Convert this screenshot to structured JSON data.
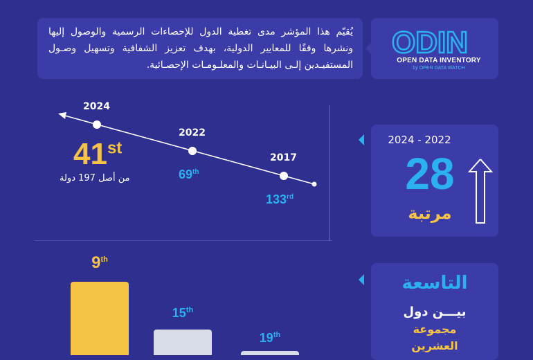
{
  "description": "يُقيّم هذا المؤشر مدى تغطية الدول للإحصاءات الرسمية والوصول إليها ونشرها وفقًا للمعايير الدولية، بهدف تعزيز الشفافية وتسهيل وصـول المستفيـدين إلـى البيـانـات والمعلـومـات الإحصـائية.",
  "logo": {
    "word": "ODIN",
    "subtitle": "OPEN DATA INVENTORY",
    "byline": "by OPEN DATA WATCH"
  },
  "timeline": {
    "points": [
      {
        "year": "2024",
        "rank_num": "41",
        "rank_suffix": "st"
      },
      {
        "year": "2022",
        "rank_num": "69",
        "rank_suffix": "th"
      },
      {
        "year": "2017",
        "rank_num": "133",
        "rank_suffix": "rd"
      }
    ],
    "total_note": "من أصل 197 دولة"
  },
  "improvement": {
    "years": "2024 - 2022",
    "value": "28",
    "label": "مرتبة"
  },
  "g20": {
    "title": "التاسعة",
    "line1": "بيـــن دول",
    "line2": "مجموعة",
    "line3": "العشرين"
  },
  "bars": [
    {
      "rank_num": "9",
      "rank_suffix": "th",
      "color": "#f6c445"
    },
    {
      "rank_num": "15",
      "rank_suffix": "th",
      "color": "#d8dbe8"
    },
    {
      "rank_num": "19",
      "rank_suffix": "th",
      "color": "#d8dbe8"
    }
  ],
  "colors": {
    "background": "#2f2f8f",
    "card": "#3c3ca8",
    "accent_blue": "#2bb0f0",
    "accent_yellow": "#f6c445"
  }
}
